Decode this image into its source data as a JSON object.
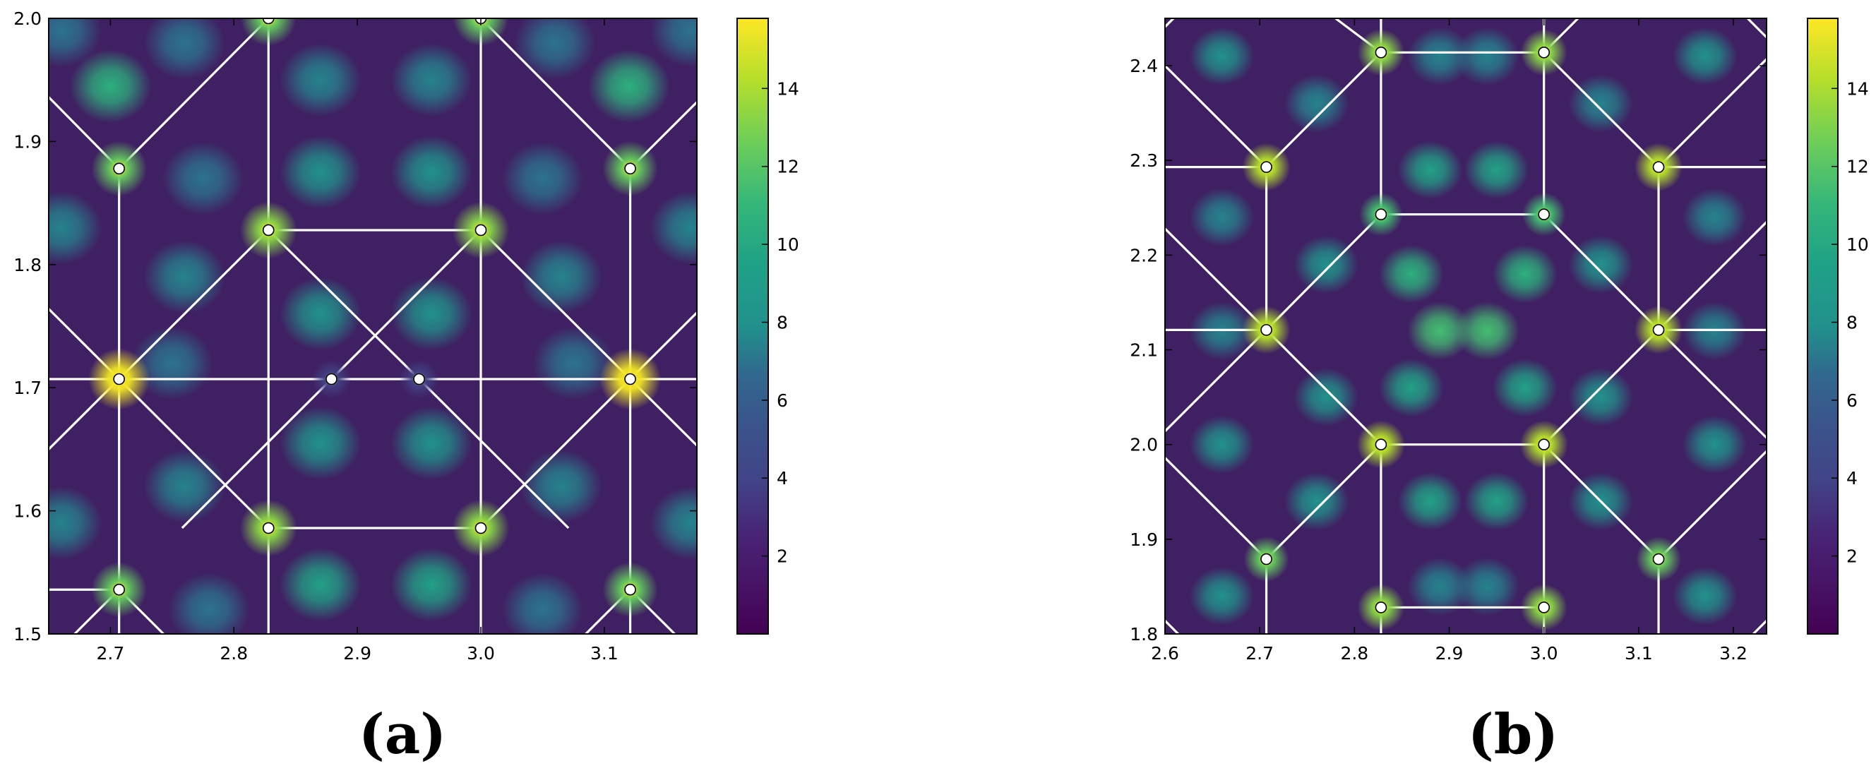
{
  "chart_data": [
    {
      "type": "heatmap",
      "panel_label": "(a)",
      "xlim": [
        2.65,
        3.175
      ],
      "ylim": [
        1.5,
        2.0
      ],
      "x_ticks": [
        "2.7",
        "2.8",
        "2.9",
        "3.0",
        "3.1"
      ],
      "y_ticks": [
        "1.5",
        "1.6",
        "1.7",
        "1.8",
        "1.9",
        "2.0"
      ],
      "colorbar": {
        "colormap": "viridis",
        "range": [
          0,
          15.8
        ],
        "ticks": [
          "2",
          "4",
          "6",
          "8",
          "10",
          "12",
          "14"
        ]
      },
      "points": [
        {
          "x": 2.707,
          "y": 1.878,
          "v": 12
        },
        {
          "x": 2.828,
          "y": 2.0,
          "v": 12
        },
        {
          "x": 3.0,
          "y": 2.0,
          "v": 12
        },
        {
          "x": 3.121,
          "y": 1.878,
          "v": 12
        },
        {
          "x": 2.828,
          "y": 1.828,
          "v": 13
        },
        {
          "x": 3.0,
          "y": 1.828,
          "v": 13
        },
        {
          "x": 2.707,
          "y": 1.707,
          "v": 15.5
        },
        {
          "x": 2.879,
          "y": 1.707,
          "v": 3
        },
        {
          "x": 2.95,
          "y": 1.707,
          "v": 3
        },
        {
          "x": 3.121,
          "y": 1.707,
          "v": 15.5
        },
        {
          "x": 2.828,
          "y": 1.586,
          "v": 13
        },
        {
          "x": 3.0,
          "y": 1.586,
          "v": 13
        },
        {
          "x": 2.707,
          "y": 1.536,
          "v": 12
        },
        {
          "x": 3.121,
          "y": 1.536,
          "v": 12
        }
      ],
      "blobs": [
        {
          "x": 2.7,
          "y": 1.945,
          "v": 10
        },
        {
          "x": 3.12,
          "y": 1.945,
          "v": 10
        },
        {
          "x": 2.76,
          "y": 1.98,
          "v": 6
        },
        {
          "x": 3.06,
          "y": 1.98,
          "v": 6
        },
        {
          "x": 2.87,
          "y": 1.95,
          "v": 7
        },
        {
          "x": 2.96,
          "y": 1.95,
          "v": 7
        },
        {
          "x": 2.66,
          "y": 1.99,
          "v": 6
        },
        {
          "x": 3.17,
          "y": 1.99,
          "v": 6
        },
        {
          "x": 2.775,
          "y": 1.87,
          "v": 6
        },
        {
          "x": 3.05,
          "y": 1.87,
          "v": 6
        },
        {
          "x": 2.87,
          "y": 1.875,
          "v": 8
        },
        {
          "x": 2.96,
          "y": 1.875,
          "v": 8
        },
        {
          "x": 2.76,
          "y": 1.79,
          "v": 7
        },
        {
          "x": 3.065,
          "y": 1.79,
          "v": 7
        },
        {
          "x": 2.66,
          "y": 1.83,
          "v": 7
        },
        {
          "x": 3.17,
          "y": 1.83,
          "v": 7
        },
        {
          "x": 2.87,
          "y": 1.76,
          "v": 8
        },
        {
          "x": 2.96,
          "y": 1.76,
          "v": 8
        },
        {
          "x": 2.75,
          "y": 1.72,
          "v": 6
        },
        {
          "x": 3.075,
          "y": 1.72,
          "v": 6
        },
        {
          "x": 2.87,
          "y": 1.655,
          "v": 8
        },
        {
          "x": 2.96,
          "y": 1.655,
          "v": 8
        },
        {
          "x": 2.76,
          "y": 1.62,
          "v": 7
        },
        {
          "x": 3.065,
          "y": 1.62,
          "v": 7
        },
        {
          "x": 2.66,
          "y": 1.59,
          "v": 7
        },
        {
          "x": 3.17,
          "y": 1.59,
          "v": 7
        },
        {
          "x": 2.87,
          "y": 1.54,
          "v": 9
        },
        {
          "x": 2.96,
          "y": 1.54,
          "v": 9
        },
        {
          "x": 2.78,
          "y": 1.52,
          "v": 6
        },
        {
          "x": 3.05,
          "y": 1.52,
          "v": 6
        }
      ],
      "segments": [
        [
          2.65,
          1.936,
          2.707,
          1.878
        ],
        [
          2.707,
          1.878,
          2.828,
          2.0
        ],
        [
          2.828,
          2.0,
          2.828,
          1.828
        ],
        [
          2.828,
          1.828,
          2.828,
          1.5
        ],
        [
          3.0,
          2.0,
          3.0,
          1.5
        ],
        [
          3.0,
          2.0,
          3.121,
          1.878
        ],
        [
          3.121,
          1.878,
          3.175,
          1.932
        ],
        [
          2.707,
          1.878,
          2.707,
          1.5
        ],
        [
          3.121,
          1.878,
          3.121,
          1.5
        ],
        [
          2.828,
          1.828,
          3.0,
          1.828
        ],
        [
          2.65,
          1.707,
          3.175,
          1.707
        ],
        [
          2.65,
          1.764,
          2.828,
          1.586
        ],
        [
          2.65,
          1.65,
          2.828,
          1.828
        ],
        [
          2.828,
          1.828,
          2.95,
          1.707
        ],
        [
          2.95,
          1.707,
          3.071,
          1.586
        ],
        [
          3.0,
          1.828,
          2.879,
          1.707
        ],
        [
          2.879,
          1.707,
          2.758,
          1.586
        ],
        [
          3.0,
          1.828,
          3.175,
          1.653
        ],
        [
          3.0,
          1.586,
          3.175,
          1.761
        ],
        [
          2.828,
          1.586,
          3.0,
          1.586
        ],
        [
          2.65,
          1.536,
          2.707,
          1.536
        ],
        [
          2.707,
          1.536,
          2.743,
          1.5
        ],
        [
          2.707,
          1.536,
          2.671,
          1.5
        ],
        [
          3.121,
          1.536,
          3.085,
          1.5
        ],
        [
          3.121,
          1.536,
          3.157,
          1.5
        ]
      ]
    },
    {
      "type": "heatmap",
      "panel_label": "(b)",
      "xlim": [
        2.6,
        3.235
      ],
      "ylim": [
        1.8,
        2.45
      ],
      "x_ticks": [
        "2.6",
        "2.7",
        "2.8",
        "2.9",
        "3.0",
        "3.1",
        "3.2"
      ],
      "y_ticks": [
        "1.8",
        "1.9",
        "2.0",
        "2.1",
        "2.2",
        "2.3",
        "2.4"
      ],
      "colorbar": {
        "colormap": "viridis",
        "range": [
          0,
          15.8
        ],
        "ticks": [
          "2",
          "4",
          "6",
          "8",
          "10",
          "12",
          "14"
        ]
      },
      "points": [
        {
          "x": 2.828,
          "y": 2.414,
          "v": 13
        },
        {
          "x": 3.0,
          "y": 2.414,
          "v": 13
        },
        {
          "x": 2.707,
          "y": 2.293,
          "v": 14
        },
        {
          "x": 3.121,
          "y": 2.293,
          "v": 14
        },
        {
          "x": 2.828,
          "y": 2.243,
          "v": 11
        },
        {
          "x": 3.0,
          "y": 2.243,
          "v": 11
        },
        {
          "x": 2.707,
          "y": 2.121,
          "v": 14
        },
        {
          "x": 3.121,
          "y": 2.121,
          "v": 14
        },
        {
          "x": 2.828,
          "y": 2.0,
          "v": 14
        },
        {
          "x": 3.0,
          "y": 2.0,
          "v": 14
        },
        {
          "x": 2.707,
          "y": 1.879,
          "v": 12
        },
        {
          "x": 3.121,
          "y": 1.879,
          "v": 12
        },
        {
          "x": 2.828,
          "y": 1.828,
          "v": 13
        },
        {
          "x": 3.0,
          "y": 1.828,
          "v": 13
        }
      ],
      "blobs": [
        {
          "x": 2.66,
          "y": 2.41,
          "v": 8
        },
        {
          "x": 3.17,
          "y": 2.41,
          "v": 8
        },
        {
          "x": 2.89,
          "y": 2.41,
          "v": 7
        },
        {
          "x": 2.94,
          "y": 2.41,
          "v": 7
        },
        {
          "x": 2.76,
          "y": 2.36,
          "v": 7
        },
        {
          "x": 3.06,
          "y": 2.36,
          "v": 7
        },
        {
          "x": 2.88,
          "y": 2.29,
          "v": 9
        },
        {
          "x": 2.95,
          "y": 2.29,
          "v": 9
        },
        {
          "x": 2.66,
          "y": 2.24,
          "v": 7
        },
        {
          "x": 3.18,
          "y": 2.24,
          "v": 7
        },
        {
          "x": 2.77,
          "y": 2.19,
          "v": 8
        },
        {
          "x": 3.06,
          "y": 2.19,
          "v": 8
        },
        {
          "x": 2.86,
          "y": 2.18,
          "v": 10
        },
        {
          "x": 2.98,
          "y": 2.18,
          "v": 10
        },
        {
          "x": 2.89,
          "y": 2.12,
          "v": 11
        },
        {
          "x": 2.94,
          "y": 2.12,
          "v": 11
        },
        {
          "x": 2.66,
          "y": 2.12,
          "v": 7
        },
        {
          "x": 3.18,
          "y": 2.12,
          "v": 7
        },
        {
          "x": 2.86,
          "y": 2.06,
          "v": 9
        },
        {
          "x": 2.98,
          "y": 2.06,
          "v": 9
        },
        {
          "x": 2.77,
          "y": 2.05,
          "v": 8
        },
        {
          "x": 3.06,
          "y": 2.05,
          "v": 8
        },
        {
          "x": 2.66,
          "y": 2.0,
          "v": 8
        },
        {
          "x": 3.18,
          "y": 2.0,
          "v": 8
        },
        {
          "x": 2.76,
          "y": 1.94,
          "v": 8
        },
        {
          "x": 3.06,
          "y": 1.94,
          "v": 8
        },
        {
          "x": 2.88,
          "y": 1.94,
          "v": 9
        },
        {
          "x": 2.95,
          "y": 1.94,
          "v": 9
        },
        {
          "x": 2.66,
          "y": 1.84,
          "v": 8
        },
        {
          "x": 3.17,
          "y": 1.84,
          "v": 8
        },
        {
          "x": 2.89,
          "y": 1.85,
          "v": 7
        },
        {
          "x": 2.94,
          "y": 1.85,
          "v": 7
        }
      ],
      "segments": [
        [
          2.828,
          2.414,
          3.0,
          2.414
        ],
        [
          2.828,
          2.45,
          2.828,
          2.243
        ],
        [
          3.0,
          2.45,
          3.0,
          2.243
        ],
        [
          2.828,
          2.243,
          3.0,
          2.243
        ],
        [
          2.828,
          2.414,
          2.707,
          2.293
        ],
        [
          2.707,
          2.293,
          2.6,
          2.4
        ],
        [
          3.0,
          2.414,
          3.121,
          2.293
        ],
        [
          3.121,
          2.293,
          3.235,
          2.407
        ],
        [
          2.6,
          2.293,
          2.707,
          2.293
        ],
        [
          3.121,
          2.293,
          3.235,
          2.293
        ],
        [
          2.707,
          2.293,
          2.707,
          2.121
        ],
        [
          3.121,
          2.293,
          3.121,
          2.121
        ],
        [
          2.828,
          2.243,
          2.707,
          2.121
        ],
        [
          3.0,
          2.243,
          3.121,
          2.121
        ],
        [
          2.6,
          2.121,
          2.707,
          2.121
        ],
        [
          3.121,
          2.121,
          3.235,
          2.121
        ],
        [
          2.6,
          2.228,
          2.707,
          2.121
        ],
        [
          3.121,
          2.121,
          3.235,
          2.235
        ],
        [
          2.6,
          2.014,
          2.707,
          2.121
        ],
        [
          3.121,
          2.121,
          3.235,
          2.007
        ],
        [
          2.707,
          2.121,
          2.828,
          2.0
        ],
        [
          3.121,
          2.121,
          3.0,
          2.0
        ],
        [
          2.828,
          2.0,
          3.0,
          2.0
        ],
        [
          2.828,
          2.0,
          2.707,
          1.879
        ],
        [
          3.0,
          2.0,
          3.121,
          1.879
        ],
        [
          2.707,
          1.879,
          2.6,
          1.986
        ],
        [
          3.121,
          1.879,
          3.235,
          1.993
        ],
        [
          2.828,
          2.0,
          2.828,
          1.828
        ],
        [
          3.0,
          2.0,
          3.0,
          1.828
        ],
        [
          2.707,
          1.879,
          2.707,
          1.8
        ],
        [
          3.121,
          1.879,
          3.121,
          1.8
        ],
        [
          2.828,
          1.828,
          3.0,
          1.828
        ],
        [
          2.828,
          1.828,
          2.828,
          1.8
        ],
        [
          3.0,
          1.828,
          3.0,
          1.8
        ],
        [
          2.6,
          2.441,
          2.609,
          2.45
        ],
        [
          3.235,
          2.43,
          3.215,
          2.45
        ],
        [
          2.78,
          2.45,
          2.828,
          2.414
        ],
        [
          3.0,
          2.414,
          3.036,
          2.45
        ],
        [
          2.6,
          1.814,
          2.614,
          1.8
        ],
        [
          3.235,
          1.814,
          3.221,
          1.8
        ]
      ]
    }
  ]
}
